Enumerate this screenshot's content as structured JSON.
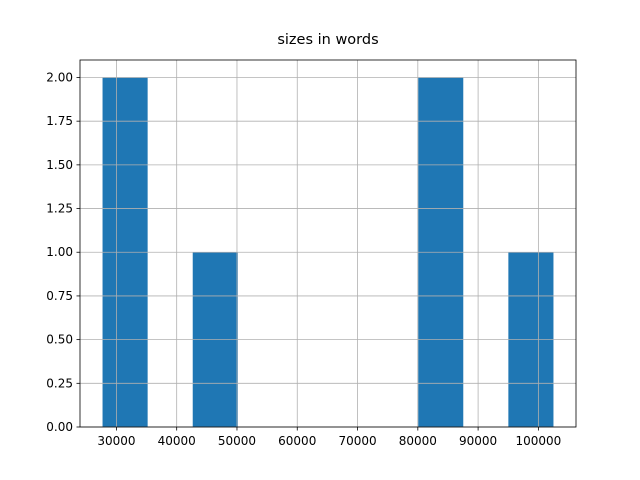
{
  "chart_data": {
    "type": "histogram",
    "title": "sizes in words",
    "bins": [
      27700,
      35180,
      42660,
      50140,
      57620,
      65100,
      72580,
      80060,
      87540,
      95020,
      102500
    ],
    "values": [
      2,
      0,
      1,
      0,
      0,
      0,
      0,
      2,
      0,
      1
    ],
    "color": "#1f77b4",
    "xlim": [
      23960,
      106240
    ],
    "xticks": [
      30000,
      40000,
      50000,
      60000,
      70000,
      80000,
      90000,
      100000
    ],
    "ylim": [
      0,
      2.1
    ],
    "yticks": [
      {
        "value": 0,
        "label": "0.00"
      },
      {
        "value": 0.25,
        "label": "0.25"
      },
      {
        "value": 0.5,
        "label": "0.50"
      },
      {
        "value": 0.75,
        "label": "0.75"
      },
      {
        "value": 1,
        "label": "1.00"
      },
      {
        "value": 1.25,
        "label": "1.25"
      },
      {
        "value": 1.5,
        "label": "1.50"
      },
      {
        "value": 1.75,
        "label": "1.75"
      },
      {
        "value": 2,
        "label": "2.00"
      }
    ],
    "grid": true
  }
}
